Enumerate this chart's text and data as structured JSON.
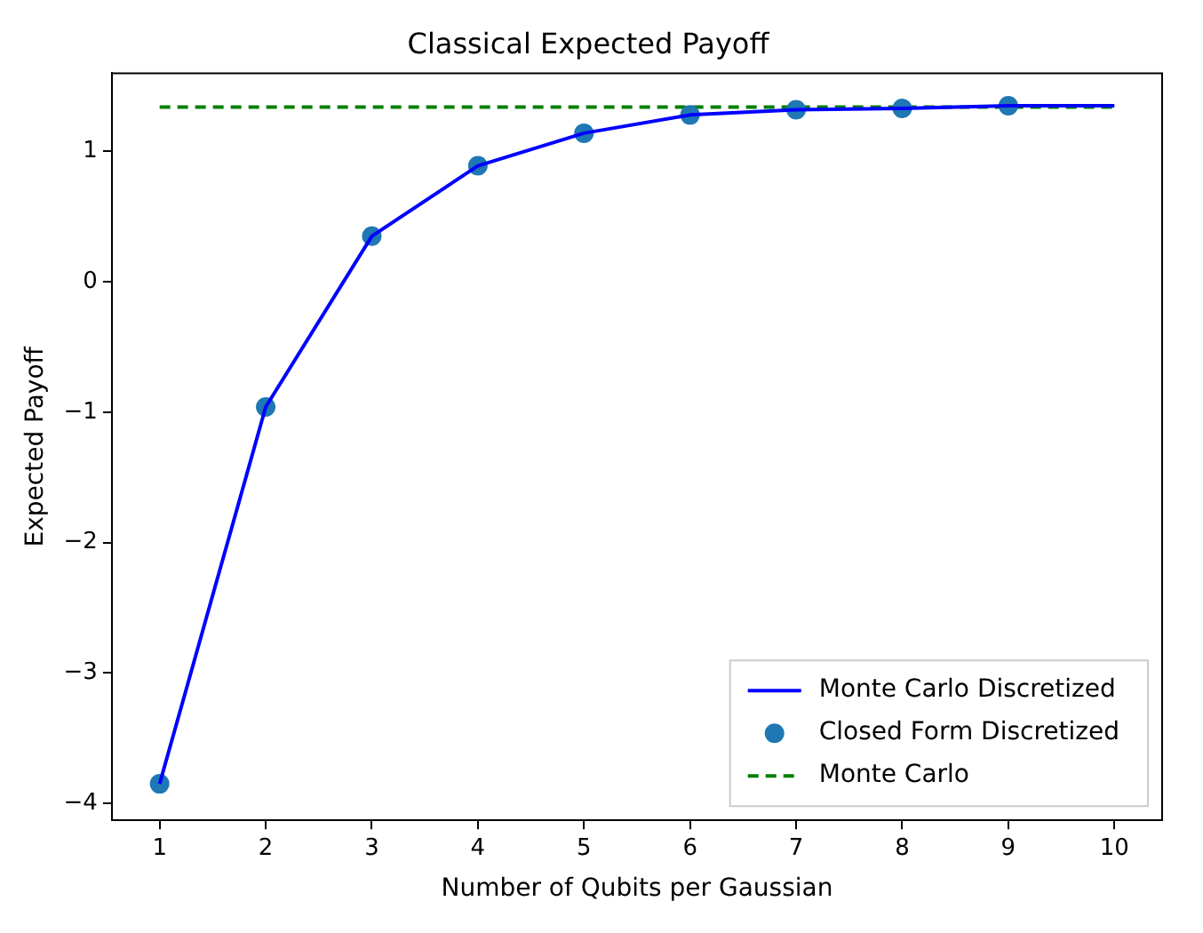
{
  "chart_data": {
    "type": "line",
    "title": "Classical Expected Payoff",
    "xlabel": "Number of Qubits per Gaussian",
    "ylabel": "Expected Payoff",
    "xlim": [
      0.55,
      10.45
    ],
    "xticks": [
      1,
      2,
      3,
      4,
      5,
      6,
      7,
      8,
      9,
      10
    ],
    "ylim": [
      -4.13,
      1.6
    ],
    "yticks": [
      {
        "value": -4,
        "label": "−4"
      },
      {
        "value": -3,
        "label": "−3"
      },
      {
        "value": -2,
        "label": "−2"
      },
      {
        "value": -1,
        "label": "−1"
      },
      0,
      1
    ],
    "grid": false,
    "legend": "bottom right",
    "series": [
      {
        "name": "Monte Carlo Discretized",
        "type": "line",
        "color": "#0000ff",
        "marker": "none",
        "line_style": "solid",
        "x": [
          1,
          2,
          3,
          4,
          5,
          6,
          7,
          8,
          9,
          10
        ],
        "values": [
          -3.85,
          -0.96,
          0.35,
          0.89,
          1.14,
          1.28,
          1.32,
          1.33,
          1.35,
          1.35
        ]
      },
      {
        "name": "Closed Form Discretized",
        "type": "scatter",
        "color": "#1f77b4",
        "marker": "circle",
        "x": [
          1,
          2,
          3,
          4,
          5,
          6,
          7,
          8,
          9
        ],
        "values": [
          -3.85,
          -0.96,
          0.35,
          0.89,
          1.14,
          1.28,
          1.32,
          1.33,
          1.35
        ]
      },
      {
        "name": "Monte Carlo",
        "type": "line",
        "color": "#008000",
        "marker": "none",
        "line_style": "dashed",
        "x": [
          1,
          10
        ],
        "values": [
          1.34,
          1.34
        ]
      }
    ]
  }
}
